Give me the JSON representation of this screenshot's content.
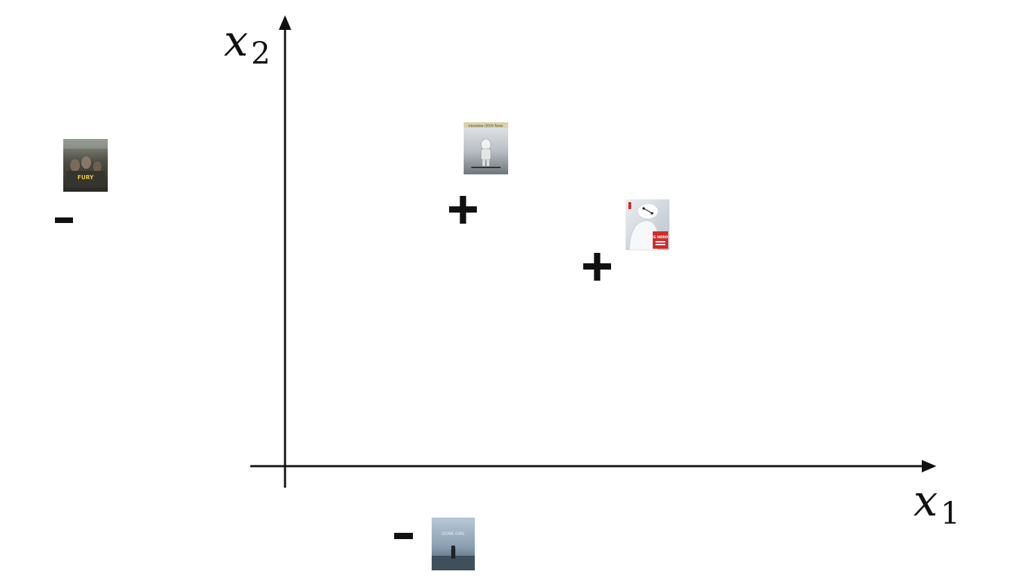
{
  "axes": {
    "x_label": {
      "var": "x",
      "sub": "1"
    },
    "y_label": {
      "var": "x",
      "sub": "2"
    }
  },
  "points": [
    {
      "name": "fury",
      "sign": "-",
      "poster_text": "FURY"
    },
    {
      "name": "interstellar",
      "sign": "+",
      "poster_text": "Interstellar (2014) Poster"
    },
    {
      "name": "big-hero-6",
      "sign": "+",
      "poster_text": "BIG HERO 6"
    },
    {
      "name": "gone-girl",
      "sign": "-",
      "poster_text": "GONE GIRL"
    }
  ],
  "colors": {
    "ink": "#111111",
    "fury_dark": "#3b3a33",
    "fury_title": "#e8c640",
    "interstellar_sky": "#c9ced2",
    "interstellar_ground": "#7f868a",
    "baymax_bg": "#d7dde3",
    "baymax_red": "#d22a2a",
    "gone_girl_sky": "#9fb3c4",
    "gone_girl_sea": "#4c5e6d"
  }
}
